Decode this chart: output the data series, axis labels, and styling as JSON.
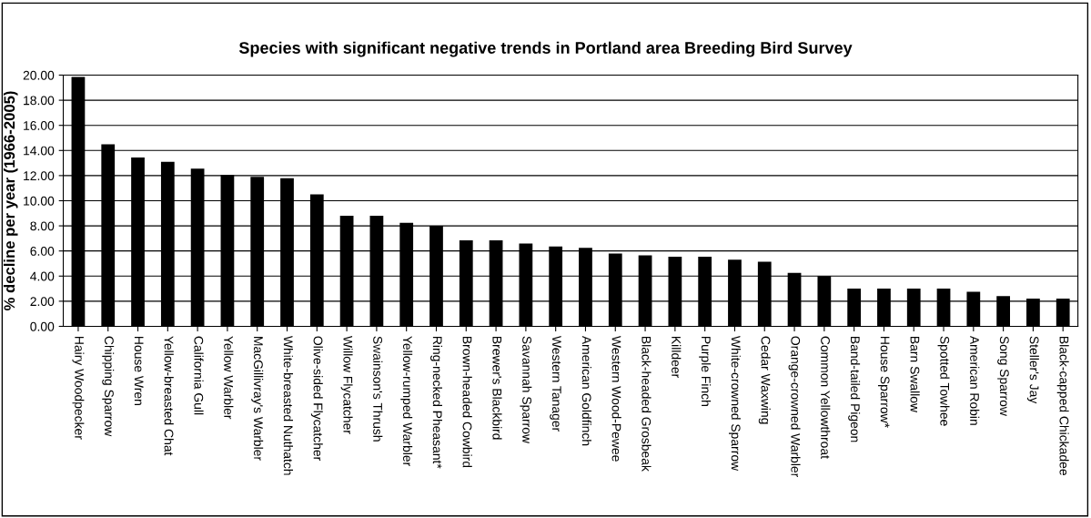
{
  "chart_data": {
    "type": "bar",
    "title": "Species with significant negative trends in Portland area Breeding Bird Survey",
    "ylabel": "% decline per year (1966-2005)",
    "categories": [
      "Hairy Woodpecker",
      "Chipping Sparrow",
      "House Wren",
      "Yellow-breasted Chat",
      "California Gull",
      "Yellow Warbler",
      "MacGillivray's Warbler",
      "White-breasted Nuthatch",
      "Olive-sided Flycatcher",
      "Willow Flycatcher",
      "Swainson's Thrush",
      "Yellow-rumped Warbler",
      "Ring-necked Pheasant*",
      "Brown-headed Cowbird",
      "Brewer's Blackbird",
      "Savannah Sparrow",
      "Western Tanager",
      "American Goldfinch",
      "Western Wood-Pewee",
      "Black-headed Grosbeak",
      "Killdeer",
      "Purple Finch",
      "White-crowned Sparrow",
      "Cedar Waxwing",
      "Orange-crowned Warbler",
      "Common Yellowthroat",
      "Band-tailed Pigeon",
      "House Sparrow*",
      "Barn Swallow",
      "Spotted Towhee",
      "American Robin",
      "Song Sparrow",
      "Steller's Jay",
      "Black-capped Chickadee"
    ],
    "values": [
      19.85,
      14.5,
      13.45,
      13.1,
      12.55,
      12.05,
      11.9,
      11.8,
      10.5,
      8.8,
      8.8,
      8.25,
      8.0,
      6.85,
      6.85,
      6.6,
      6.35,
      6.25,
      5.8,
      5.65,
      5.55,
      5.55,
      5.3,
      5.15,
      4.25,
      4.0,
      3.0,
      3.0,
      3.0,
      3.0,
      2.75,
      2.4,
      2.2,
      2.2
    ],
    "color": "#000000",
    "ylim": [
      0,
      20
    ],
    "yticks": [
      {
        "value": 0,
        "label": "0.00"
      },
      {
        "value": 2,
        "label": "2.00"
      },
      {
        "value": 4,
        "label": "4.00"
      },
      {
        "value": 6,
        "label": "6.00"
      },
      {
        "value": 8,
        "label": "8.00"
      },
      {
        "value": 10,
        "label": "10.00"
      },
      {
        "value": 12,
        "label": "12.00"
      },
      {
        "value": 14,
        "label": "14.00"
      },
      {
        "value": 16,
        "label": "16.00"
      },
      {
        "value": 18,
        "label": "18.00"
      },
      {
        "value": 20,
        "label": "20.00"
      }
    ],
    "grid": "y",
    "legend": false
  }
}
